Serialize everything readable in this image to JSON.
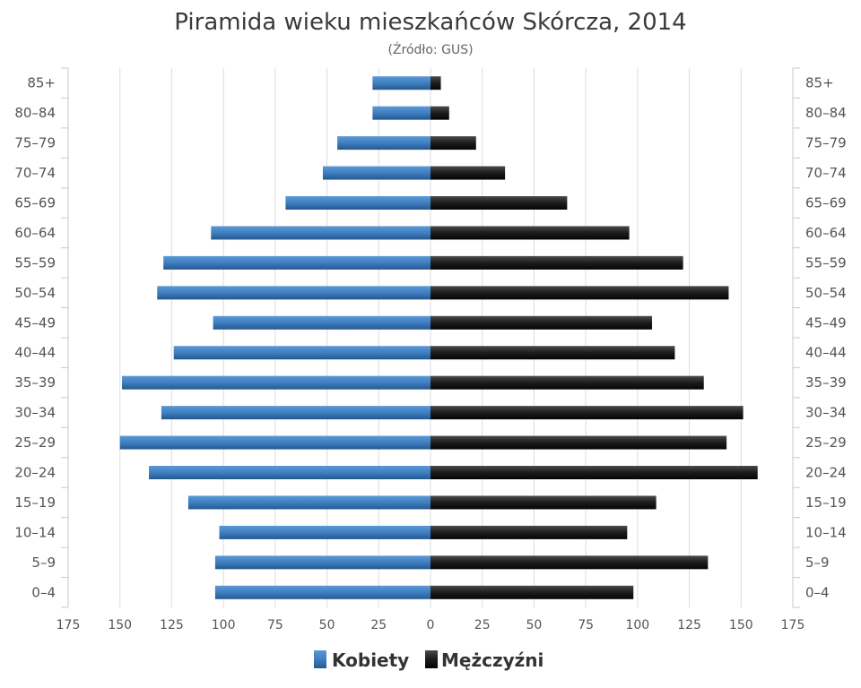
{
  "chart_data": {
    "type": "bar",
    "orientation": "horizontal-population-pyramid",
    "title": "Piramida wieku mieszkańców Skórcza, 2014",
    "subtitle": "(Źródło: GUS)",
    "categories": [
      "0–4",
      "5–9",
      "10–14",
      "15–19",
      "20–24",
      "25–29",
      "30–34",
      "35–39",
      "40–44",
      "45–49",
      "50–54",
      "55–59",
      "60–64",
      "65–69",
      "70–74",
      "75–79",
      "80–84",
      "85+"
    ],
    "series": [
      {
        "name": "Kobiety",
        "side": "left",
        "color": "#3d7ab8",
        "values": [
          104,
          104,
          102,
          117,
          136,
          150,
          130,
          149,
          124,
          105,
          132,
          129,
          106,
          70,
          52,
          45,
          28,
          28
        ]
      },
      {
        "name": "Mężczyźni",
        "side": "right",
        "color": "#1a1a1a",
        "values": [
          98,
          134,
          95,
          109,
          158,
          143,
          151,
          132,
          118,
          107,
          144,
          122,
          96,
          66,
          36,
          22,
          9,
          5
        ]
      }
    ],
    "xlim": [
      -175,
      175
    ],
    "x_ticks": [
      -175,
      -150,
      -125,
      -100,
      -75,
      -50,
      -25,
      0,
      25,
      50,
      75,
      100,
      125,
      150,
      175
    ],
    "x_tick_labels": [
      "175",
      "150",
      "125",
      "100",
      "75",
      "50",
      "25",
      "0",
      "25",
      "50",
      "75",
      "100",
      "125",
      "150",
      "175"
    ],
    "grid": true,
    "legend": {
      "position": "bottom-center",
      "entries": [
        "Kobiety",
        "Mężczyźni"
      ]
    }
  }
}
